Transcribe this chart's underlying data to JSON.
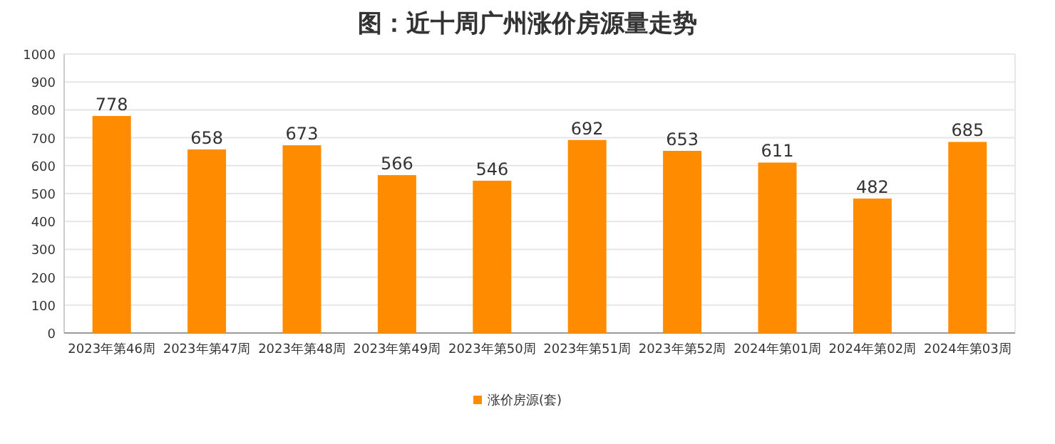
{
  "chart_data": {
    "type": "bar",
    "title": "图：近十周广州涨价房源量走势",
    "categories": [
      "2023年第46周",
      "2023年第47周",
      "2023年第48周",
      "2023年第49周",
      "2023年第50周",
      "2023年第51周",
      "2023年第52周",
      "2024年第01周",
      "2024年第02周",
      "2024年第03周"
    ],
    "series": [
      {
        "name": "涨价房源(套)",
        "color": "#ff8c00",
        "values": [
          778,
          658,
          673,
          566,
          546,
          692,
          653,
          611,
          482,
          685
        ]
      }
    ],
    "ylim": [
      0,
      1000
    ],
    "yticks": [
      0,
      100,
      200,
      300,
      400,
      500,
      600,
      700,
      800,
      900,
      1000
    ],
    "grid": "y",
    "legend": "bottom",
    "data_labels": true
  }
}
